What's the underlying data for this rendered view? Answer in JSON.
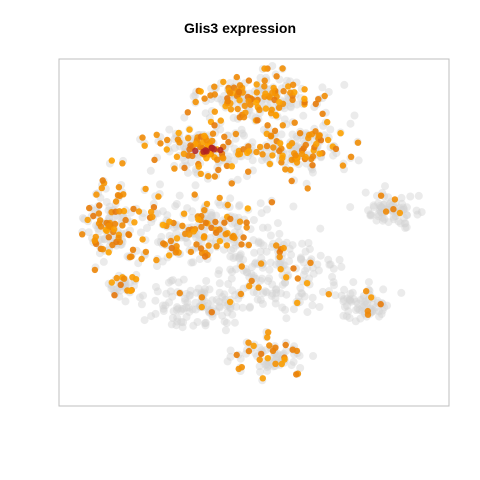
{
  "chart_data": {
    "type": "scatter",
    "title": "Glis3 expression",
    "xlabel": "",
    "ylabel": "",
    "axes_visible": false,
    "grid": false,
    "legend": "none",
    "colors": {
      "low": "#d3d3d3",
      "mid": "#ffa500",
      "high": "#b22222",
      "frame": "#bfbfbf"
    },
    "clusters": [
      {
        "name": "",
        "center": [
          258,
          98
        ],
        "spread": [
          50,
          20
        ],
        "n": 160,
        "expr_frac": 0.55
      },
      {
        "name": "",
        "center": [
          200,
          150
        ],
        "spread": [
          45,
          18
        ],
        "n": 120,
        "expr_frac": 0.6
      },
      {
        "name": "",
        "center": [
          300,
          150
        ],
        "spread": [
          45,
          22
        ],
        "n": 120,
        "expr_frac": 0.5
      },
      {
        "name": "",
        "center": [
          108,
          225
        ],
        "spread": [
          22,
          30
        ],
        "n": 90,
        "expr_frac": 0.6
      },
      {
        "name": "",
        "center": [
          200,
          230
        ],
        "spread": [
          60,
          35
        ],
        "n": 200,
        "expr_frac": 0.35
      },
      {
        "name": "",
        "center": [
          280,
          275
        ],
        "spread": [
          55,
          35
        ],
        "n": 170,
        "expr_frac": 0.12
      },
      {
        "name": "",
        "center": [
          190,
          305
        ],
        "spread": [
          45,
          20
        ],
        "n": 110,
        "expr_frac": 0.08
      },
      {
        "name": "",
        "center": [
          390,
          210
        ],
        "spread": [
          25,
          12
        ],
        "n": 70,
        "expr_frac": 0.05
      },
      {
        "name": "",
        "center": [
          365,
          305
        ],
        "spread": [
          22,
          15
        ],
        "n": 60,
        "expr_frac": 0.1
      },
      {
        "name": "",
        "center": [
          272,
          358
        ],
        "spread": [
          32,
          15
        ],
        "n": 70,
        "expr_frac": 0.4
      },
      {
        "name": "",
        "center": [
          120,
          285
        ],
        "spread": [
          18,
          12
        ],
        "n": 30,
        "expr_frac": 0.2
      }
    ],
    "hotspot": {
      "center": [
        210,
        150
      ],
      "n": 8
    }
  }
}
